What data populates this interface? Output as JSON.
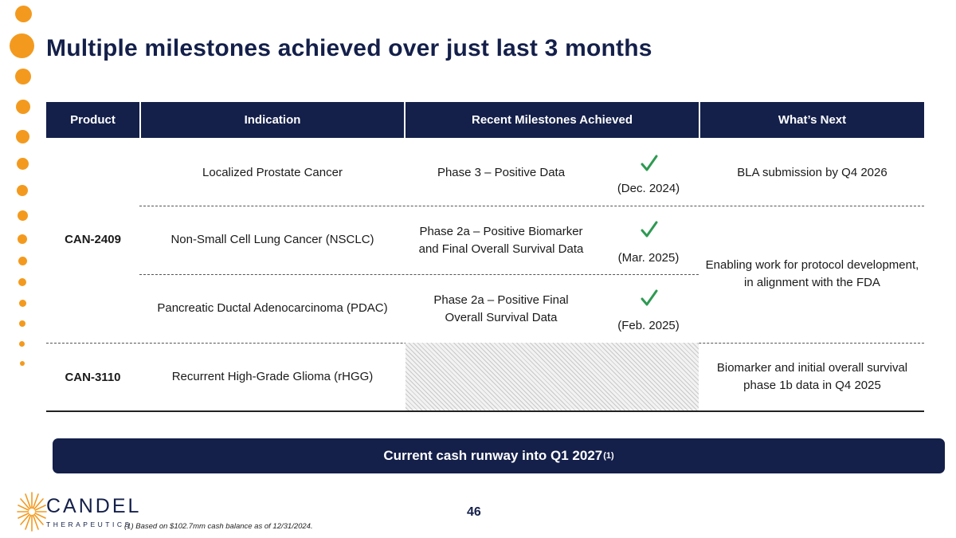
{
  "slide": {
    "title": "Multiple milestones achieved over just last 3 months",
    "page_number": "46"
  },
  "table": {
    "headers": [
      "Product",
      "Indication",
      "Recent Milestones Achieved",
      "What’s Next"
    ],
    "products": [
      "CAN-2409",
      "CAN-3110"
    ],
    "rows": [
      {
        "indication": "Localized Prostate Cancer",
        "milestone": "Phase 3 – Positive Data",
        "date": "(Dec. 2024)"
      },
      {
        "indication": "Non-Small Cell Lung Cancer (NSCLC)",
        "milestone": "Phase 2a – Positive Biomarker and Final Overall Survival Data",
        "date": "(Mar. 2025)"
      },
      {
        "indication": "Pancreatic Ductal Adenocarcinoma (PDAC)",
        "milestone": "Phase 2a – Positive Final Overall Survival Data",
        "date": "(Feb. 2025)"
      },
      {
        "indication": "Recurrent High-Grade Glioma (rHGG)"
      }
    ],
    "next": [
      "BLA submission by Q4 2026",
      "Enabling work for protocol development, in alignment with the FDA",
      "Biomarker and initial overall survival phase 1b data in Q4 2025"
    ],
    "check_color": "#2e9a52"
  },
  "banner": {
    "text": "Current cash runway into Q1 2027",
    "superscript": "(1)"
  },
  "footnote": "(1) Based on $102.7mm cash balance as of 12/31/2024.",
  "logo": {
    "name": "CANDEL",
    "subtitle": "THERAPEUTICS"
  },
  "colors": {
    "navy": "#14204a",
    "orange": "#f39a1e"
  }
}
